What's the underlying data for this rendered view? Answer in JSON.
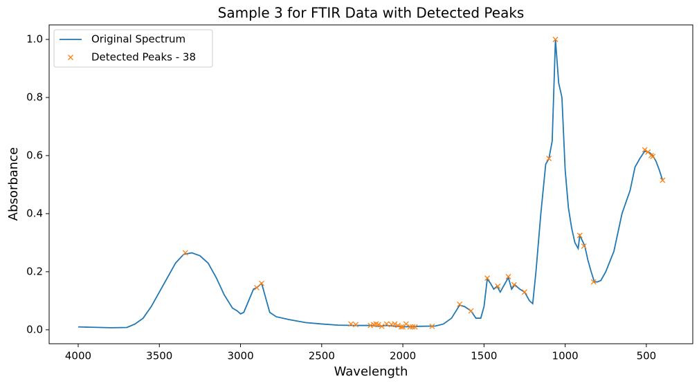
{
  "chart_data": {
    "type": "line",
    "title": "Sample 3 for FTIR Data with Detected Peaks",
    "x_label": "Wavelength",
    "y_label": "Absorbance",
    "xlim": [
      4179,
      214
    ],
    "ylim": [
      -0.048,
      1.05
    ],
    "xticks": [
      4000,
      3500,
      3000,
      2500,
      2000,
      1500,
      1000,
      500
    ],
    "yticks": [
      {
        "value": 0,
        "label": "0.0"
      },
      0.2,
      0.4,
      0.6,
      0.8,
      {
        "value": 1,
        "label": "1.0"
      }
    ],
    "grid": false,
    "legend": "upper left",
    "series": [
      {
        "name": "Original Spectrum",
        "color": "#1f77b4",
        "style": "line",
        "x": [
          4000,
          3800,
          3700,
          3650,
          3600,
          3550,
          3500,
          3450,
          3400,
          3350,
          3300,
          3250,
          3200,
          3150,
          3100,
          3050,
          3020,
          3000,
          2980,
          2950,
          2920,
          2900,
          2880,
          2870,
          2850,
          2820,
          2780,
          2700,
          2650,
          2600,
          2500,
          2400,
          2300,
          2200,
          2150,
          2100,
          2000,
          1900,
          1800,
          1750,
          1700,
          1650,
          1620,
          1580,
          1550,
          1520,
          1500,
          1480,
          1460,
          1440,
          1420,
          1400,
          1380,
          1350,
          1330,
          1310,
          1280,
          1250,
          1220,
          1200,
          1180,
          1150,
          1120,
          1100,
          1080,
          1060,
          1040,
          1020,
          1000,
          980,
          960,
          940,
          920,
          910,
          880,
          860,
          840,
          820,
          800,
          780,
          750,
          700,
          650,
          600,
          570,
          540,
          510,
          480,
          460,
          440,
          420,
          400
        ],
        "values": [
          0.01,
          0.007,
          0.008,
          0.02,
          0.04,
          0.08,
          0.13,
          0.18,
          0.23,
          0.26,
          0.265,
          0.255,
          0.23,
          0.18,
          0.12,
          0.075,
          0.065,
          0.055,
          0.06,
          0.1,
          0.14,
          0.145,
          0.155,
          0.16,
          0.12,
          0.06,
          0.045,
          0.035,
          0.03,
          0.025,
          0.02,
          0.016,
          0.015,
          0.015,
          0.012,
          0.015,
          0.01,
          0.012,
          0.013,
          0.02,
          0.04,
          0.085,
          0.08,
          0.065,
          0.04,
          0.04,
          0.08,
          0.175,
          0.16,
          0.14,
          0.15,
          0.13,
          0.15,
          0.18,
          0.14,
          0.155,
          0.14,
          0.13,
          0.1,
          0.09,
          0.2,
          0.4,
          0.57,
          0.59,
          0.65,
          1.0,
          0.85,
          0.8,
          0.55,
          0.42,
          0.35,
          0.3,
          0.28,
          0.325,
          0.29,
          0.24,
          0.2,
          0.165,
          0.165,
          0.17,
          0.2,
          0.27,
          0.4,
          0.48,
          0.56,
          0.59,
          0.615,
          0.61,
          0.6,
          0.58,
          0.55,
          0.515
        ]
      },
      {
        "name": "Detected Peaks - 38",
        "color": "#ff7f0e",
        "style": "marker",
        "x": [
          3340,
          2900,
          2870,
          2320,
          2290,
          2200,
          2180,
          2165,
          2150,
          2130,
          2100,
          2070,
          2050,
          2030,
          2010,
          2000,
          1980,
          1955,
          1940,
          1925,
          1820,
          1650,
          1580,
          1480,
          1415,
          1350,
          1315,
          1250,
          1100,
          1060,
          910,
          885,
          825,
          510,
          490,
          470,
          460,
          400
        ],
        "values": [
          0.265,
          0.145,
          0.16,
          0.02,
          0.018,
          0.015,
          0.018,
          0.02,
          0.018,
          0.012,
          0.02,
          0.018,
          0.02,
          0.015,
          0.01,
          0.01,
          0.02,
          0.01,
          0.01,
          0.01,
          0.012,
          0.088,
          0.065,
          0.178,
          0.15,
          0.183,
          0.155,
          0.13,
          0.59,
          1.0,
          0.325,
          0.288,
          0.165,
          0.62,
          0.612,
          0.6,
          0.597,
          0.515
        ]
      }
    ]
  }
}
